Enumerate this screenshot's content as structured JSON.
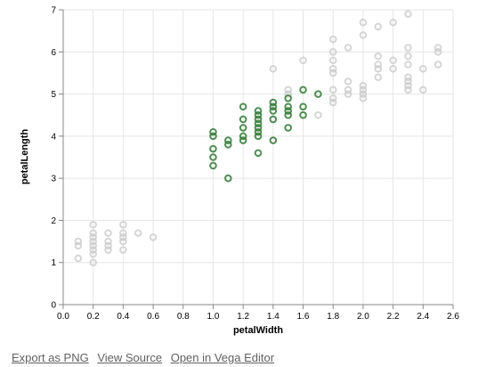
{
  "chart_data": {
    "type": "scatter",
    "xlabel": "petalWidth",
    "ylabel": "petalLength",
    "xlim": [
      0,
      2.6
    ],
    "ylim": [
      0,
      7
    ],
    "x_ticks": [
      "0.0",
      "0.2",
      "0.4",
      "0.6",
      "0.8",
      "1.0",
      "1.2",
      "1.4",
      "1.6",
      "1.8",
      "2.0",
      "2.2",
      "2.4",
      "2.6"
    ],
    "y_ticks": [
      "0",
      "1",
      "2",
      "3",
      "4",
      "5",
      "6",
      "7"
    ],
    "grid": true,
    "series": [
      {
        "color": "#c8c8c8",
        "points": [
          [
            0.1,
            1.4
          ],
          [
            0.1,
            1.5
          ],
          [
            0.1,
            1.1
          ],
          [
            0.2,
            1.0
          ],
          [
            0.2,
            1.2
          ],
          [
            0.2,
            1.3
          ],
          [
            0.2,
            1.4
          ],
          [
            0.2,
            1.5
          ],
          [
            0.2,
            1.6
          ],
          [
            0.2,
            1.7
          ],
          [
            0.2,
            1.9
          ],
          [
            0.3,
            1.3
          ],
          [
            0.3,
            1.4
          ],
          [
            0.3,
            1.5
          ],
          [
            0.3,
            1.7
          ],
          [
            0.4,
            1.3
          ],
          [
            0.4,
            1.5
          ],
          [
            0.4,
            1.6
          ],
          [
            0.4,
            1.7
          ],
          [
            0.4,
            1.9
          ],
          [
            0.5,
            1.7
          ],
          [
            0.6,
            1.6
          ],
          [
            1.4,
            5.6
          ],
          [
            1.5,
            5.0
          ],
          [
            1.5,
            5.1
          ],
          [
            1.6,
            5.8
          ],
          [
            1.7,
            4.5
          ],
          [
            1.8,
            4.8
          ],
          [
            1.8,
            4.9
          ],
          [
            1.8,
            5.1
          ],
          [
            1.8,
            5.5
          ],
          [
            1.8,
            5.6
          ],
          [
            1.8,
            5.8
          ],
          [
            1.8,
            6.0
          ],
          [
            1.8,
            6.3
          ],
          [
            1.9,
            5.0
          ],
          [
            1.9,
            5.1
          ],
          [
            1.9,
            5.3
          ],
          [
            1.9,
            6.1
          ],
          [
            2.0,
            4.9
          ],
          [
            2.0,
            5.0
          ],
          [
            2.0,
            5.1
          ],
          [
            2.0,
            5.2
          ],
          [
            2.0,
            6.4
          ],
          [
            2.0,
            6.7
          ],
          [
            2.1,
            5.4
          ],
          [
            2.1,
            5.6
          ],
          [
            2.1,
            5.7
          ],
          [
            2.1,
            5.9
          ],
          [
            2.1,
            6.6
          ],
          [
            2.2,
            5.6
          ],
          [
            2.2,
            5.8
          ],
          [
            2.2,
            6.7
          ],
          [
            2.3,
            5.1
          ],
          [
            2.3,
            5.2
          ],
          [
            2.3,
            5.3
          ],
          [
            2.3,
            5.4
          ],
          [
            2.3,
            5.7
          ],
          [
            2.3,
            5.9
          ],
          [
            2.3,
            6.1
          ],
          [
            2.3,
            6.9
          ],
          [
            2.4,
            5.1
          ],
          [
            2.4,
            5.6
          ],
          [
            2.5,
            5.7
          ],
          [
            2.5,
            6.0
          ],
          [
            2.5,
            6.1
          ]
        ]
      },
      {
        "color": "#2e7d32",
        "points": [
          [
            1.0,
            3.3
          ],
          [
            1.0,
            3.5
          ],
          [
            1.0,
            3.7
          ],
          [
            1.0,
            4.0
          ],
          [
            1.0,
            4.1
          ],
          [
            1.1,
            3.0
          ],
          [
            1.1,
            3.8
          ],
          [
            1.1,
            3.9
          ],
          [
            1.2,
            3.9
          ],
          [
            1.2,
            4.0
          ],
          [
            1.2,
            4.2
          ],
          [
            1.2,
            4.4
          ],
          [
            1.2,
            4.7
          ],
          [
            1.3,
            3.6
          ],
          [
            1.3,
            4.0
          ],
          [
            1.3,
            4.1
          ],
          [
            1.3,
            4.2
          ],
          [
            1.3,
            4.3
          ],
          [
            1.3,
            4.4
          ],
          [
            1.3,
            4.5
          ],
          [
            1.3,
            4.6
          ],
          [
            1.4,
            3.9
          ],
          [
            1.4,
            4.4
          ],
          [
            1.4,
            4.6
          ],
          [
            1.4,
            4.7
          ],
          [
            1.4,
            4.8
          ],
          [
            1.5,
            4.2
          ],
          [
            1.5,
            4.5
          ],
          [
            1.5,
            4.6
          ],
          [
            1.5,
            4.7
          ],
          [
            1.5,
            4.9
          ],
          [
            1.6,
            4.5
          ],
          [
            1.6,
            4.7
          ],
          [
            1.6,
            5.1
          ],
          [
            1.7,
            5.0
          ]
        ]
      }
    ]
  },
  "links": {
    "export_png": "Export as PNG",
    "view_source": "View Source",
    "open_editor": "Open in Vega Editor"
  }
}
